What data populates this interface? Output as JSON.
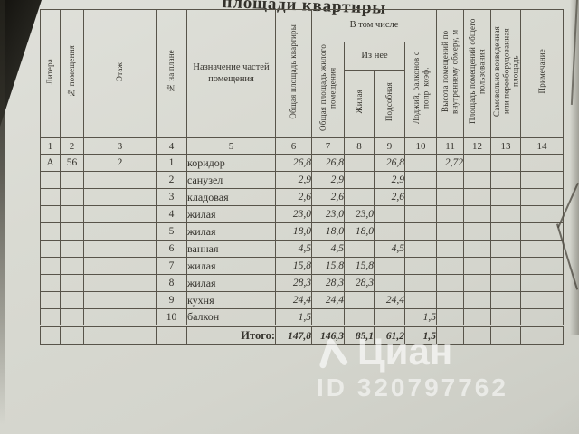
{
  "title": "площади квартиры",
  "columns": {
    "litera": "Литера",
    "num_pomeshcheniya": "№ помещения",
    "etazh": "Этаж",
    "num_na_plane": "№ на плане",
    "naznachenie": "Назначение частей помещения",
    "obshchaya_kvartiry": "Общая площадь квартиры",
    "v_tom_chisle": "В том числе",
    "obshchaya_zhilogo": "Общая площадь жилого помещения",
    "iz_nee": "Из нее",
    "zhilaya": "Жилая",
    "podsobnaya": "Подсобная",
    "lodzhiy": "Лоджий, балконов с попр. коэф.",
    "vysota": "Высота помещений по внутреннему обмеру, м",
    "ploshchad_obshchego": "Площадь помещений общего пользования",
    "samovolno": "Самовольно возведенная или переоборудованная площадь",
    "primechanie": "Примечание"
  },
  "column_numbers": [
    "1",
    "2",
    "3",
    "4",
    "5",
    "6",
    "7",
    "8",
    "9",
    "10",
    "11",
    "12",
    "13",
    "14"
  ],
  "rows": [
    [
      "А",
      "56",
      "2",
      "1",
      "коридор",
      "26,8",
      "26,8",
      "",
      "26,8",
      "",
      "2,72",
      "",
      "",
      ""
    ],
    [
      "",
      "",
      "",
      "2",
      "санузел",
      "2,9",
      "2,9",
      "",
      "2,9",
      "",
      "",
      "",
      "",
      ""
    ],
    [
      "",
      "",
      "",
      "3",
      "кладовая",
      "2,6",
      "2,6",
      "",
      "2,6",
      "",
      "",
      "",
      "",
      ""
    ],
    [
      "",
      "",
      "",
      "4",
      "жилая",
      "23,0",
      "23,0",
      "23,0",
      "",
      "",
      "",
      "",
      "",
      ""
    ],
    [
      "",
      "",
      "",
      "5",
      "жилая",
      "18,0",
      "18,0",
      "18,0",
      "",
      "",
      "",
      "",
      "",
      ""
    ],
    [
      "",
      "",
      "",
      "6",
      "ванная",
      "4,5",
      "4,5",
      "",
      "4,5",
      "",
      "",
      "",
      "",
      ""
    ],
    [
      "",
      "",
      "",
      "7",
      "жилая",
      "15,8",
      "15,8",
      "15,8",
      "",
      "",
      "",
      "",
      "",
      ""
    ],
    [
      "",
      "",
      "",
      "8",
      "жилая",
      "28,3",
      "28,3",
      "28,3",
      "",
      "",
      "",
      "",
      "",
      ""
    ],
    [
      "",
      "",
      "",
      "9",
      "кухня",
      "24,4",
      "24,4",
      "",
      "24,4",
      "",
      "",
      "",
      "",
      ""
    ],
    [
      "",
      "",
      "",
      "10",
      "балкон",
      "1,5",
      "",
      "",
      "",
      "1,5",
      "",
      "",
      "",
      ""
    ]
  ],
  "total": {
    "label": "Итого:",
    "values": [
      "147,8",
      "146,3",
      "85,1",
      "61,2",
      "1,5",
      "",
      "",
      "",
      ""
    ]
  },
  "watermark": {
    "logo_icon": "cian-logo-icon",
    "brand": "Циан",
    "id_label": "ID 320797762"
  },
  "colors": {
    "paper": "#d7d8d0",
    "grid_line": "#58544a",
    "ink": "#35332d",
    "watermark": "rgba(255,255,255,0.62)"
  }
}
